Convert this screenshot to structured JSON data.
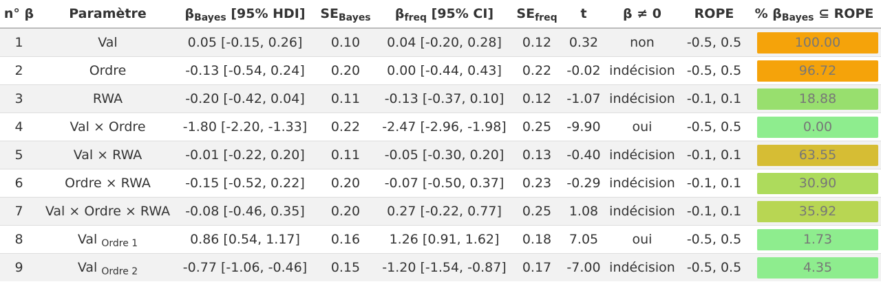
{
  "headers": {
    "n": "n° β",
    "param": "Paramètre",
    "bbayes_main": "β",
    "bbayes_sub": "Bayes",
    "bbayes_tail": " [95% HDI]",
    "sebayes_main": "SE",
    "sebayes_sub": "Bayes",
    "bfreq_main": "β",
    "bfreq_sub": "freq",
    "bfreq_tail": " [95% CI]",
    "sefreq_main": "SE",
    "sefreq_sub": "freq",
    "t": "t",
    "neq0": "β ≠ 0",
    "rope": "ROPE",
    "pct_main": "% β",
    "pct_sub": "Bayes",
    "pct_tail": " ⊆ ROPE"
  },
  "rows": [
    {
      "n": "1",
      "param": "Val",
      "param_sub": "",
      "bbayes": "0.05 [-0.15, 0.26]",
      "sebayes": "0.10",
      "bfreq": "0.04 [-0.20, 0.28]",
      "sefreq": "0.12",
      "t": "0.32",
      "neq0": "non",
      "rope": "-0.5, 0.5",
      "pct": "100.00",
      "color": "#f5a30a"
    },
    {
      "n": "2",
      "param": "Ordre",
      "param_sub": "",
      "bbayes": "-0.13 [-0.54, 0.24]",
      "sebayes": "0.20",
      "bfreq": "0.00 [-0.44, 0.43]",
      "sefreq": "0.22",
      "t": "-0.02",
      "neq0": "indécision",
      "rope": "-0.5, 0.5",
      "pct": "96.72",
      "color": "#f5a30a"
    },
    {
      "n": "3",
      "param": "RWA",
      "param_sub": "",
      "bbayes": "-0.20 [-0.42, 0.04]",
      "sebayes": "0.11",
      "bfreq": "-0.13 [-0.37, 0.10]",
      "sefreq": "0.12",
      "t": "-1.07",
      "neq0": "indécision",
      "rope": "-0.1, 0.1",
      "pct": "18.88",
      "color": "#98df6e"
    },
    {
      "n": "4",
      "param": "Val × Ordre",
      "param_sub": "",
      "bbayes": "-1.80 [-2.20, -1.33]",
      "sebayes": "0.22",
      "bfreq": "-2.47 [-2.96, -1.98]",
      "sefreq": "0.25",
      "t": "-9.90",
      "neq0": "oui",
      "rope": "-0.5, 0.5",
      "pct": "0.00",
      "color": "#8eed8e"
    },
    {
      "n": "5",
      "param": "Val × RWA",
      "param_sub": "",
      "bbayes": "-0.01 [-0.22, 0.20]",
      "sebayes": "0.11",
      "bfreq": "-0.05 [-0.30, 0.20]",
      "sefreq": "0.13",
      "t": "-0.40",
      "neq0": "indécision",
      "rope": "-0.1, 0.1",
      "pct": "63.55",
      "color": "#d6bd34"
    },
    {
      "n": "6",
      "param": "Ordre × RWA",
      "param_sub": "",
      "bbayes": "-0.15 [-0.52, 0.22]",
      "sebayes": "0.20",
      "bfreq": "-0.07 [-0.50, 0.37]",
      "sefreq": "0.23",
      "t": "-0.29",
      "neq0": "indécision",
      "rope": "-0.1, 0.1",
      "pct": "30.90",
      "color": "#addb5c"
    },
    {
      "n": "7",
      "param": "Val × Ordre × RWA",
      "param_sub": "",
      "bbayes": "-0.08 [-0.46, 0.35]",
      "sebayes": "0.20",
      "bfreq": "0.27 [-0.22, 0.77]",
      "sefreq": "0.25",
      "t": "1.08",
      "neq0": "indécision",
      "rope": "-0.1, 0.1",
      "pct": "35.92",
      "color": "#b8d653"
    },
    {
      "n": "8",
      "param": "Val",
      "param_sub": "Ordre 1",
      "bbayes": "0.86 [0.54, 1.17]",
      "sebayes": "0.16",
      "bfreq": "1.26 [0.91, 1.62]",
      "sefreq": "0.18",
      "t": "7.05",
      "neq0": "oui",
      "rope": "-0.5, 0.5",
      "pct": "1.73",
      "color": "#8eed8e"
    },
    {
      "n": "9",
      "param": "Val",
      "param_sub": "Ordre 2",
      "bbayes": "-0.77 [-1.06, -0.46]",
      "sebayes": "0.15",
      "bfreq": "-1.20 [-1.54, -0.87]",
      "sefreq": "0.17",
      "t": "-7.00",
      "neq0": "indécision",
      "rope": "-0.5, 0.5",
      "pct": "4.35",
      "color": "#8eed8e"
    }
  ]
}
